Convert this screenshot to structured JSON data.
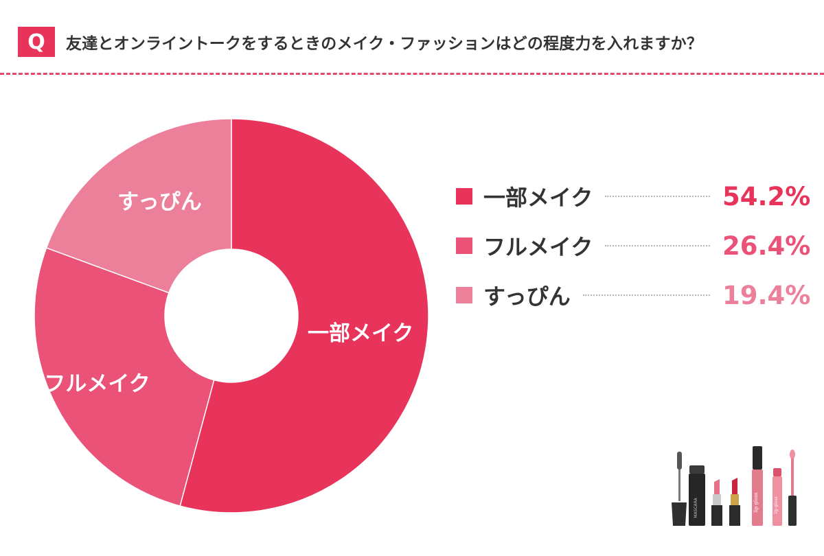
{
  "header": {
    "badge": "Q",
    "question": "友達とオンライントークをするときのメイク・ファッションはどの程度力を入れますか？"
  },
  "colors": {
    "accent": "#e8335a",
    "slice_1": "#e8345a",
    "slice_2": "#ea5278",
    "slice_3": "#ec7f9a"
  },
  "chart_data": {
    "type": "pie",
    "donut": true,
    "categories": [
      "一部メイク",
      "フルメイク",
      "すっぴん"
    ],
    "values": [
      54.2,
      26.4,
      19.4
    ],
    "value_labels": [
      "54.2%",
      "26.4%",
      "19.4%"
    ],
    "unit": "%",
    "legend_position": "right"
  },
  "decoration": {
    "mascara_text": "MASCARA",
    "gloss_text": "lip gloss"
  }
}
